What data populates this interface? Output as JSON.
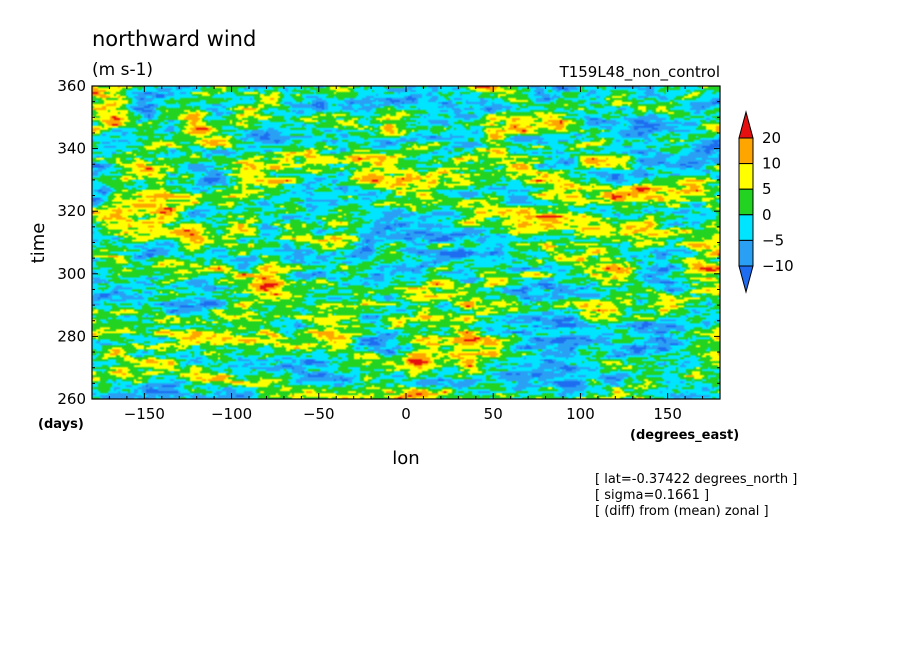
{
  "chart_data": {
    "type": "heatmap",
    "title": "northward wind",
    "units": "(m s-1)",
    "run_label": "T159L48_non_control",
    "xlabel": "lon",
    "xunits": "(degrees_east)",
    "ylabel": "time",
    "yunits": "(days)",
    "xlim": [
      -180,
      180
    ],
    "ylim": [
      260,
      360
    ],
    "xticks": [
      -150,
      -100,
      -50,
      0,
      50,
      100,
      150
    ],
    "yticks": [
      260,
      280,
      300,
      320,
      340,
      360
    ],
    "colorbar": {
      "levels": [
        -10,
        -5,
        0,
        5,
        10,
        20
      ],
      "colors": [
        "#1e6cf0",
        "#2aa0f5",
        "#00e5ff",
        "#22d322",
        "#ffff00",
        "#ffa500",
        "#e61010"
      ],
      "extend": "both"
    },
    "annotations": [
      "[ lat=-0.37422 degrees_north ]",
      "[ sigma=0.1661 ]",
      "[ (diff) from (mean) zonal ]"
    ],
    "field_description": "noisy zonal-time field of northward wind anomalies, values mostly between -10 and 10 m s-1 with isolated maxima above 20"
  }
}
